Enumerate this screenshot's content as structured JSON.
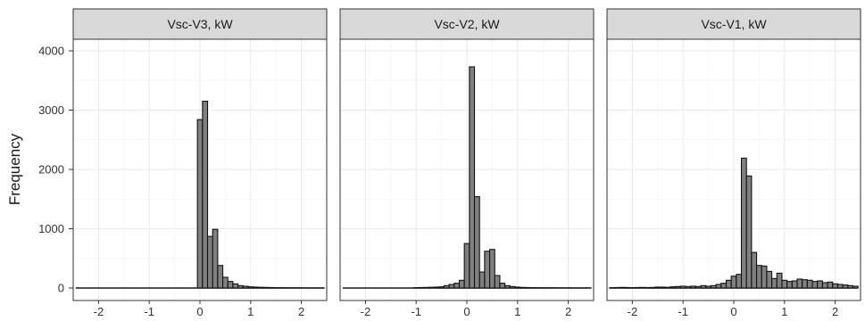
{
  "chart_data": {
    "type": "bar",
    "ylabel": "Frequency",
    "xlabel": "",
    "xlim": [
      -2.5,
      2.5
    ],
    "ylim": [
      0,
      4200
    ],
    "x_ticks": [
      -2,
      -1,
      0,
      1,
      2
    ],
    "x_tick_labels": [
      "-2",
      "-1",
      "0",
      "1",
      "2"
    ],
    "y_ticks": [
      0,
      1000,
      2000,
      3000,
      4000
    ],
    "y_tick_labels": [
      "0",
      "1000",
      "2000",
      "3000",
      "4000"
    ],
    "grid": true,
    "bin_width": 0.1,
    "bin_centers": [
      -2.4,
      -2.3,
      -2.2,
      -2.1,
      -2.0,
      -1.9,
      -1.8,
      -1.7,
      -1.6,
      -1.5,
      -1.4,
      -1.3,
      -1.2,
      -1.1,
      -1.0,
      -0.9,
      -0.8,
      -0.7,
      -0.6,
      -0.5,
      -0.4,
      -0.3,
      -0.2,
      -0.1,
      0.0,
      0.1,
      0.2,
      0.3,
      0.4,
      0.5,
      0.6,
      0.7,
      0.8,
      0.9,
      1.0,
      1.1,
      1.2,
      1.3,
      1.4,
      1.5,
      1.6,
      1.7,
      1.8,
      1.9,
      2.0,
      2.1,
      2.2,
      2.3,
      2.4
    ],
    "panels": [
      {
        "title": "Vsc-V3,  kW",
        "values": [
          0,
          0,
          0,
          0,
          0,
          0,
          0,
          0,
          0,
          0,
          0,
          0,
          0,
          0,
          0,
          0,
          0,
          0,
          0,
          0,
          0,
          0,
          0,
          0,
          2840,
          3150,
          870,
          990,
          380,
          180,
          110,
          70,
          40,
          30,
          20,
          15,
          12,
          10,
          8,
          6,
          5,
          4,
          3,
          3,
          2,
          2,
          1,
          1,
          1
        ]
      },
      {
        "title": "Vsc-V2,  kW",
        "values": [
          0,
          0,
          0,
          0,
          0,
          0,
          0,
          0,
          0,
          0,
          0,
          0,
          0,
          0,
          5,
          8,
          10,
          12,
          15,
          20,
          40,
          60,
          80,
          130,
          750,
          3730,
          1540,
          270,
          620,
          650,
          210,
          80,
          40,
          25,
          15,
          10,
          8,
          6,
          5,
          4,
          3,
          3,
          2,
          2,
          2,
          1,
          1,
          1,
          1
        ]
      },
      {
        "title": "Vsc-V1,  kW",
        "values": [
          5,
          8,
          10,
          8,
          6,
          8,
          10,
          8,
          10,
          15,
          15,
          12,
          20,
          25,
          30,
          25,
          30,
          25,
          40,
          30,
          40,
          60,
          80,
          130,
          200,
          230,
          2190,
          1890,
          600,
          380,
          370,
          280,
          160,
          250,
          130,
          110,
          120,
          150,
          140,
          130,
          110,
          120,
          90,
          100,
          70,
          60,
          50,
          40,
          30
        ]
      }
    ]
  }
}
